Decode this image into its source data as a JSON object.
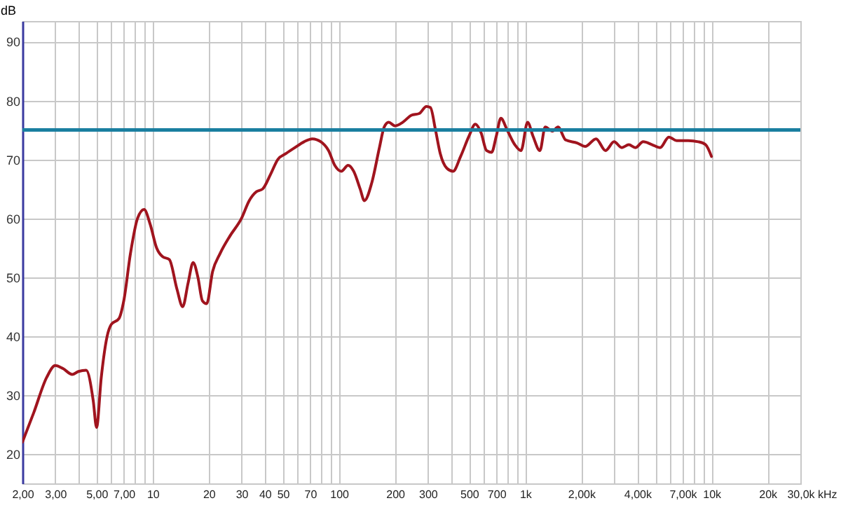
{
  "chart_data": {
    "type": "line",
    "ylabel": "dB",
    "xlabel": "kHz",
    "log": "x",
    "grid": true,
    "marker": "none",
    "line_style": "solid",
    "x": [
      2,
      2.3,
      2.7,
      3,
      3.3,
      3.7,
      4,
      4.4,
      4.8,
      5,
      5.3,
      5.7,
      6,
      6.6,
      7,
      7.6,
      8.3,
      9,
      9.7,
      10.5,
      11.3,
      12.3,
      13.5,
      14.5,
      15.5,
      16.5,
      17.5,
      18.5,
      19.5,
      21,
      23,
      26,
      30,
      33,
      36,
      39,
      43,
      47,
      52,
      58,
      65,
      72,
      80,
      88,
      95,
      103,
      112,
      120,
      130,
      137,
      150,
      165,
      175,
      185,
      200,
      220,
      245,
      270,
      295,
      310,
      330,
      350,
      380,
      410,
      450,
      500,
      540,
      580,
      620,
      660,
      700,
      740,
      800,
      880,
      950,
      1030,
      1100,
      1200,
      1280,
      1400,
      1500,
      1650,
      1900,
      2100,
      2400,
      2700,
      3000,
      3300,
      3600,
      3900,
      4300,
      4800,
      5300,
      5900,
      6500,
      7500,
      8500,
      9300,
      10000
    ],
    "series": [
      {
        "color": "#a0141e",
        "values": [
          22,
          27,
          33,
          35,
          34.5,
          33.5,
          34,
          34.2,
          29,
          24.5,
          33,
          40,
          42,
          43,
          46,
          54,
          60,
          61.5,
          59,
          55,
          53.5,
          53,
          48,
          45,
          49,
          52.5,
          50,
          46,
          45.5,
          51,
          54,
          57,
          60,
          63,
          64.5,
          65,
          67.5,
          70,
          71,
          72,
          73,
          73.5,
          73,
          71.5,
          69,
          68,
          69,
          68,
          65,
          63,
          66,
          72,
          75.5,
          76.3,
          75.7,
          76.3,
          77.5,
          77.8,
          79,
          78.8,
          75,
          71,
          68.5,
          68,
          70.5,
          74,
          76,
          74.5,
          71.5,
          71.2,
          74,
          77,
          75,
          72.5,
          71.5,
          76.3,
          74,
          71.5,
          75.5,
          74.8,
          75.5,
          73.3,
          72.8,
          72.2,
          73.5,
          71.5,
          73,
          72,
          72.5,
          72,
          73,
          72.5,
          72,
          73.8,
          73.2,
          73.2,
          73,
          72.5,
          70.5
        ]
      }
    ],
    "xlim": [
      2,
      30000
    ],
    "ylim": [
      15,
      93.5
    ],
    "xticks": [
      {
        "value": 2,
        "label": "2,00"
      },
      {
        "value": 3,
        "label": "3,00"
      },
      {
        "value": 4,
        "label": null
      },
      {
        "value": 5,
        "label": "5,00"
      },
      {
        "value": 6,
        "label": null
      },
      {
        "value": 7,
        "label": "7,00"
      },
      {
        "value": 8,
        "label": null
      },
      {
        "value": 9,
        "label": null
      },
      10,
      20,
      30,
      40,
      50,
      {
        "value": 60,
        "label": null
      },
      70,
      {
        "value": 80,
        "label": null
      },
      {
        "value": 90,
        "label": null
      },
      100,
      200,
      300,
      {
        "value": 400,
        "label": null
      },
      500,
      {
        "value": 600,
        "label": null
      },
      700,
      {
        "value": 800,
        "label": null
      },
      {
        "value": 900,
        "label": null
      },
      {
        "value": 1000,
        "label": "1k"
      },
      {
        "value": 2000,
        "label": "2,00k"
      },
      {
        "value": 3000,
        "label": null
      },
      {
        "value": 4000,
        "label": "4,00k"
      },
      {
        "value": 5000,
        "label": null
      },
      {
        "value": 6000,
        "label": null
      },
      {
        "value": 7000,
        "label": "7,00k"
      },
      {
        "value": 8000,
        "label": null
      },
      {
        "value": 9000,
        "label": null
      },
      {
        "value": 10000,
        "label": "10k"
      },
      {
        "value": 20000,
        "label": "20k"
      },
      {
        "value": 30000,
        "label": "30,0k"
      }
    ],
    "yticks": [
      20,
      30,
      40,
      50,
      60,
      70,
      80,
      90
    ],
    "ref_lines": [
      {
        "axis": "y",
        "value": 75,
        "color": "#1a7fa0",
        "line_style": "solid"
      }
    ]
  }
}
